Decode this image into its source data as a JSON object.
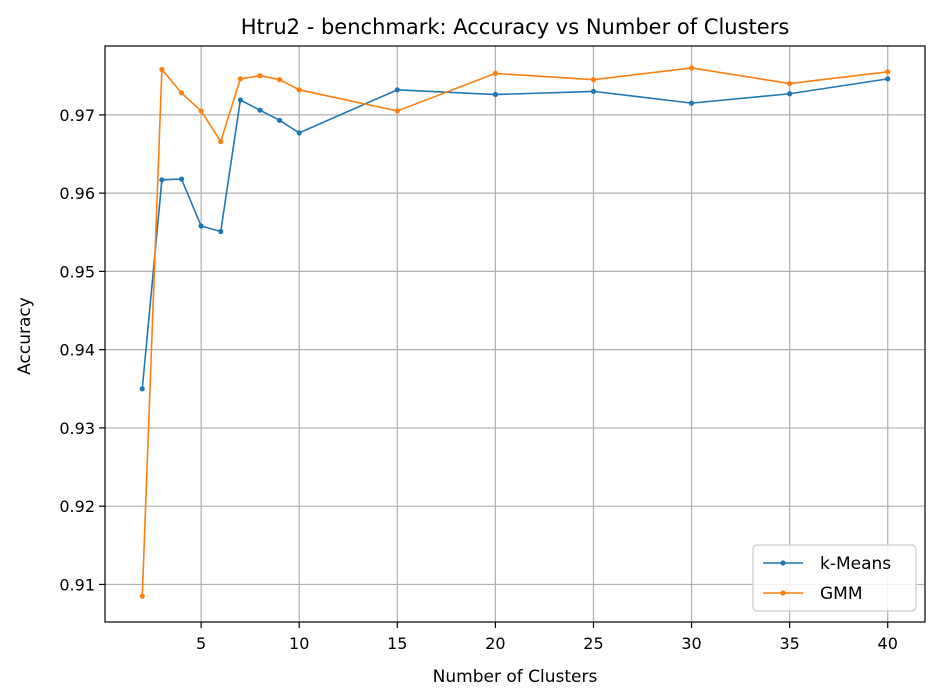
{
  "chart_data": {
    "type": "line",
    "title": "Htru2 - benchmark: Accuracy vs Number of Clusters",
    "xlabel": "Number of Clusters",
    "ylabel": "Accuracy",
    "xlim": [
      0.1,
      41.9
    ],
    "ylim": [
      0.9052,
      0.9788
    ],
    "xticks": [
      5,
      10,
      15,
      20,
      25,
      30,
      35,
      40
    ],
    "yticks": [
      0.91,
      0.92,
      0.93,
      0.94,
      0.95,
      0.96,
      0.97
    ],
    "ytick_labels": [
      "0.91",
      "0.92",
      "0.93",
      "0.94",
      "0.95",
      "0.96",
      "0.97"
    ],
    "grid": true,
    "legend_position": "bottom-right",
    "x": [
      2,
      3,
      4,
      5,
      6,
      7,
      8,
      9,
      10,
      15,
      20,
      25,
      30,
      35,
      40
    ],
    "series": [
      {
        "name": "k-Means",
        "color": "#1f77b4",
        "values": [
          0.935,
          0.9617,
          0.9618,
          0.9558,
          0.9551,
          0.9719,
          0.9706,
          0.9693,
          0.9677,
          0.9732,
          0.9726,
          0.973,
          0.9715,
          0.9727,
          0.9746
        ]
      },
      {
        "name": "GMM",
        "color": "#ff7f0e",
        "values": [
          0.9085,
          0.9758,
          0.9728,
          0.9705,
          0.9666,
          0.9746,
          0.975,
          0.9745,
          0.9732,
          0.9705,
          0.9753,
          0.9745,
          0.976,
          0.974,
          0.9755
        ]
      }
    ]
  }
}
